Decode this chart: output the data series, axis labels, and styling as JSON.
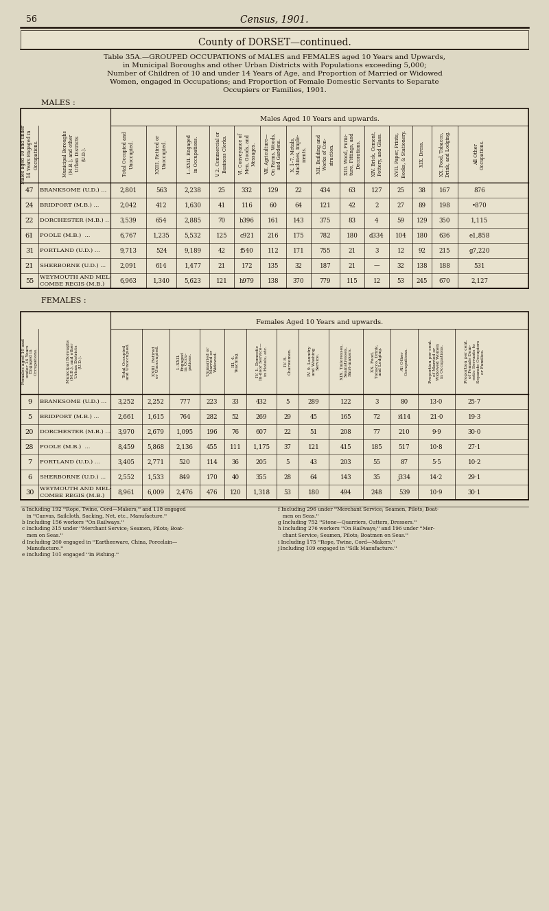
{
  "page_num": "56",
  "page_header": "Census, 1901.",
  "county_header": "County of DORSET—continued.",
  "males_label": "MALES :",
  "females_label": "FEMALES :",
  "males_section_header": "Males Aged 10 Years and upwards.",
  "females_section_header": "Females Aged 10 Years and upwards.",
  "males_rows": [
    {
      "id": "47",
      "name": "BRANKSOME (U.D.) ...",
      "total": "2,801",
      "retired": "563",
      "engaged": "2,238",
      "clerks": "25",
      "conveyance": "332",
      "agriculture": "129",
      "metals": "22",
      "building": "434",
      "wood": "63",
      "brick": "127",
      "paper": "25",
      "dress": "38",
      "food": "167",
      "other": "876"
    },
    {
      "id": "24",
      "name": "BRIDPORT (M.B.) ...",
      "total": "2,042",
      "retired": "412",
      "engaged": "1,630",
      "clerks": "41",
      "conveyance": "116",
      "agriculture": "60",
      "metals": "64",
      "building": "121",
      "wood": "42",
      "brick": "2",
      "paper": "27",
      "dress": "89",
      "food": "198",
      "other": "•870"
    },
    {
      "id": "22",
      "name": "DORCHESTER (M.B.) ..",
      "total": "3,539",
      "retired": "654",
      "engaged": "2,885",
      "clerks": "70",
      "conveyance": "b396",
      "agriculture": "161",
      "metals": "143",
      "building": "375",
      "wood": "83",
      "brick": "4",
      "paper": "59",
      "dress": "129",
      "food": "350",
      "other": "1,115"
    },
    {
      "id": "61",
      "name": "POOLE (M.B.)  ...",
      "total": "6,767",
      "retired": "1,235",
      "engaged": "5,532",
      "clerks": "125",
      "conveyance": "c921",
      "agriculture": "216",
      "metals": "175",
      "building": "782",
      "wood": "180",
      "brick": "d334",
      "paper": "104",
      "dress": "180",
      "food": "636",
      "other": "e1,858"
    },
    {
      "id": "31",
      "name": "PORTLAND (U.D.) ...",
      "total": "9,713",
      "retired": "524",
      "engaged": "9,189",
      "clerks": "42",
      "conveyance": "f540",
      "agriculture": "112",
      "metals": "171",
      "building": "755",
      "wood": "21",
      "brick": "3",
      "paper": "12",
      "dress": "92",
      "food": "215",
      "other": "g7,220"
    },
    {
      "id": "21",
      "name": "SHERBORNE (U.D.) ...",
      "total": "2,091",
      "retired": "614",
      "engaged": "1,477",
      "clerks": "21",
      "conveyance": "172",
      "agriculture": "135",
      "metals": "32",
      "building": "187",
      "wood": "21",
      "brick": "—",
      "paper": "32",
      "dress": "138",
      "food": "188",
      "other": "531"
    },
    {
      "id": "55",
      "name": "WEYMOUTH AND MEL-\nCOMBE REGIS (M.B.)",
      "total": "6,963",
      "retired": "1,340",
      "engaged": "5,623",
      "clerks": "121",
      "conveyance": "h979",
      "agriculture": "138",
      "metals": "370",
      "building": "779",
      "wood": "115",
      "brick": "12",
      "paper": "53",
      "dress": "245",
      "food": "670",
      "other": "2,127"
    }
  ],
  "females_rows": [
    {
      "id": "9",
      "name": "BRANKSOME (U.D.) ...",
      "total": "3,252",
      "retired": "2,252",
      "engaged": "777",
      "unmarried": "223",
      "teaching": "33",
      "domestic": "432",
      "charwomen": "5",
      "laundry": "289",
      "tailoresses": "122",
      "food": "3",
      "other": "80",
      "prop_married": "13·0",
      "prop_servants": "25·7"
    },
    {
      "id": "5",
      "name": "BRIDPORT (M.B.) ...",
      "total": "2,661",
      "retired": "1,615",
      "engaged": "764",
      "unmarried": "282",
      "teaching": "52",
      "domestic": "269",
      "charwomen": "29",
      "laundry": "45",
      "tailoresses": "165",
      "food": "72",
      "other": "i414",
      "prop_married": "21·0",
      "prop_servants": "19·3"
    },
    {
      "id": "20",
      "name": "DORCHESTER (M.B.) ...",
      "total": "3,970",
      "retired": "2,679",
      "engaged": "1,095",
      "unmarried": "196",
      "teaching": "76",
      "domestic": "607",
      "charwomen": "22",
      "laundry": "51",
      "tailoresses": "208",
      "food": "77",
      "other": "210",
      "prop_married": "9·9",
      "prop_servants": "30·0"
    },
    {
      "id": "28",
      "name": "POOLE (M.B.)  ...",
      "total": "8,459",
      "retired": "5,868",
      "engaged": "2,136",
      "unmarried": "455",
      "teaching": "111",
      "domestic": "1,175",
      "charwomen": "37",
      "laundry": "121",
      "tailoresses": "415",
      "food": "185",
      "other": "517",
      "prop_married": "10·8",
      "prop_servants": "27·1"
    },
    {
      "id": "7",
      "name": "PORTLAND (U.D.) ...",
      "total": "3,405",
      "retired": "2,771",
      "engaged": "520",
      "unmarried": "114",
      "teaching": "36",
      "domestic": "205",
      "charwomen": "5",
      "laundry": "43",
      "tailoresses": "203",
      "food": "55",
      "other": "87",
      "prop_married": "5·5",
      "prop_servants": "10·2"
    },
    {
      "id": "6",
      "name": "SHERBORNE (U.D.) ...",
      "total": "2,552",
      "retired": "1,533",
      "engaged": "849",
      "unmarried": "170",
      "teaching": "40",
      "domestic": "355",
      "charwomen": "28",
      "laundry": "64",
      "tailoresses": "143",
      "food": "35",
      "other": "j334",
      "prop_married": "14·2",
      "prop_servants": "29·1"
    },
    {
      "id": "30",
      "name": "WEYMOUTH AND MEL-\nCOMBE REGIS (M.B.)",
      "total": "8,961",
      "retired": "6,009",
      "engaged": "2,476",
      "unmarried": "476",
      "teaching": "120",
      "domestic": "1,318",
      "charwomen": "53",
      "laundry": "180",
      "tailoresses": "494",
      "food": "248",
      "other": "539",
      "prop_married": "10·9",
      "prop_servants": "30·1"
    }
  ],
  "footnotes_left": [
    "a Including 192 ''Rope, Twine, Cord—Makers;'' and 118 engaged",
    "   in ''Canvas, Sailcloth, Sacking, Net, etc., Manufacture.''",
    "b Including 156 workers ''On Railways.''",
    "c Including 315 under ''Merchant Service; Seamen, Pilots; Boat-",
    "   men on Seas.''",
    "d Including 260 engaged in ''Earthenware, China, Porcelain—",
    "   Manufacture.''",
    "e Including 101 engaged ''In Fishing.''"
  ],
  "footnotes_right": [
    "f Including 296 under ''Merchant Service; Seamen, Pilots; Boat-",
    "   men on Seas.''",
    "g Including 752 ''Stone—Quarriers, Cutters, Dressers.''",
    "h Including 276 workers ''On Railways;'' and 196 under ''Mer-",
    "   chant Service; Seamen, Pilots; Boatmen on Seas.''",
    "i Including 175 ''Rope, Twine, Cord—Makers.''",
    "j Including 109 engaged in ''Silk Manufacture.''"
  ],
  "bg_color": "#ddd8c4",
  "table_bg": "#e8e2ce",
  "line_color": "#1a1008",
  "text_color": "#1a1008"
}
